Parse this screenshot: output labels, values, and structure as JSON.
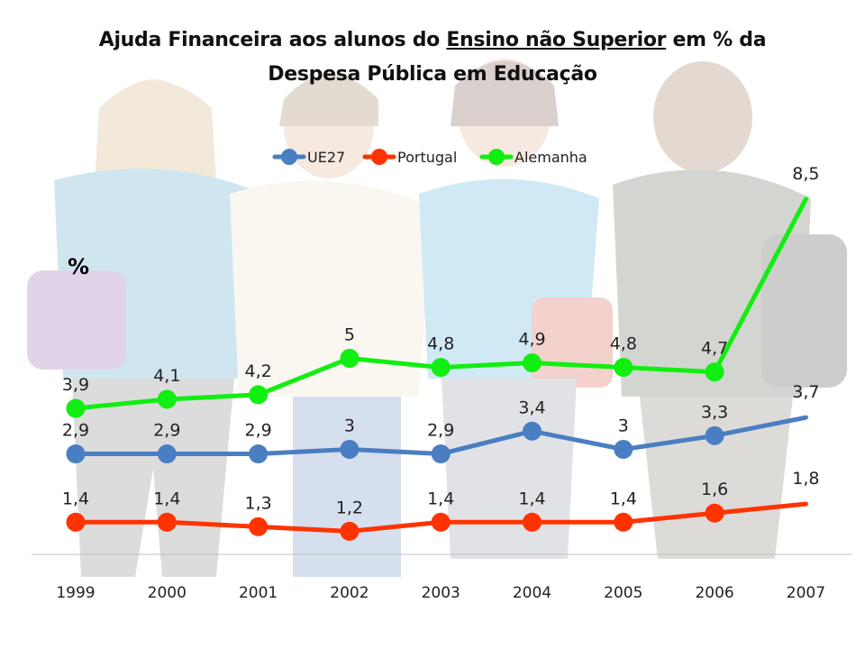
{
  "title": {
    "before": "Ajuda Financeira aos alunos do ",
    "underlined": "Ensino não Superior",
    "after": " em % da",
    "line2": "Despesa Pública em Educação"
  },
  "y_unit_label": "%",
  "chart_data": {
    "type": "line",
    "title": "Ajuda Financeira aos alunos do Ensino não Superior em % da Despesa Pública em Educação",
    "xlabel": "",
    "ylabel": "%",
    "categories": [
      "1999",
      "2000",
      "2001",
      "2002",
      "2003",
      "2004",
      "2005",
      "2006",
      "2007"
    ],
    "ylim": [
      0,
      9
    ],
    "grid": false,
    "legend": "top-center",
    "series": [
      {
        "name": "UE27",
        "color": "#4a7ec2",
        "values": [
          2.9,
          2.9,
          2.9,
          3,
          2.9,
          3.4,
          3,
          3.3,
          3.7
        ],
        "labels": [
          "2,9",
          "2,9",
          "2,9",
          "3",
          "2,9",
          "3,4",
          "3",
          "3,3",
          "3,7"
        ]
      },
      {
        "name": "Portugal",
        "color": "#ff3300",
        "values": [
          1.4,
          1.4,
          1.3,
          1.2,
          1.4,
          1.4,
          1.4,
          1.6,
          1.8
        ],
        "labels": [
          "1,4",
          "1,4",
          "1,3",
          "1,2",
          "1,4",
          "1,4",
          "1,4",
          "1,6",
          "1,8"
        ]
      },
      {
        "name": "Alemanha",
        "color": "#11ee11",
        "values": [
          3.9,
          4.1,
          4.2,
          5,
          4.8,
          4.9,
          4.8,
          4.7,
          8.5
        ],
        "labels": [
          "3,9",
          "4,1",
          "4,2",
          "5",
          "4,8",
          "4,9",
          "4,8",
          "4,7",
          "8,5"
        ]
      }
    ]
  }
}
